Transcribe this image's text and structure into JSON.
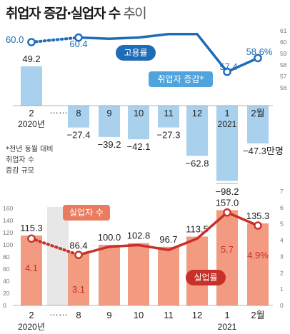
{
  "title": {
    "main": "취업자 증감·실업자 수",
    "sub": "추이"
  },
  "colors": {
    "employment_line": "#1f6bb7",
    "employed_bar": "#a9d1ee",
    "unemployed_bar": "#f29b80",
    "unemployment_line": "#c8302a",
    "unemployment_label": "#c8302a",
    "ellipsis_fill": "#e7e7e7"
  },
  "x_axis": {
    "categories": [
      "2",
      "",
      "8",
      "9",
      "10",
      "11",
      "12",
      "1",
      "2월"
    ],
    "gap_marker": "……",
    "year_labels": [
      {
        "text": "2020년",
        "at": "2"
      },
      {
        "text": "2021",
        "at": "1"
      }
    ]
  },
  "chart_data": [
    {
      "type": "bar",
      "title": "취업자 증감",
      "unit_label": "만명",
      "categories": [
        "2",
        "",
        "8",
        "9",
        "10",
        "11",
        "12",
        "1",
        "2"
      ],
      "series": [
        {
          "name": "취업자 증감*",
          "values": [
            49.2,
            null,
            -27.4,
            -39.2,
            -42.1,
            -27.3,
            -62.8,
            -98.2,
            -47.3
          ]
        }
      ],
      "value_labels": [
        "49.2",
        "",
        "-27.4",
        "-39.2",
        "-42.1",
        "-27.3",
        "-62.8",
        "-98.2",
        "-47.3"
      ],
      "last_label_unit": "만명",
      "note": [
        "*전년 동월 대비",
        "취업자 수",
        "증감 규모"
      ]
    },
    {
      "type": "line",
      "title": "고용률",
      "categories": [
        "2",
        "",
        "8",
        "9",
        "10",
        "11",
        "12",
        "1",
        "2"
      ],
      "series": [
        {
          "name": "고용률",
          "values": [
            60.0,
            null,
            60.4,
            60.3,
            60.4,
            60.7,
            60.7,
            57.4,
            58.6
          ]
        }
      ],
      "value_labels": [
        "60.0",
        "",
        "60.4",
        "",
        "",
        "",
        "",
        "57.4",
        "58.6%"
      ],
      "ylim": [
        56,
        61
      ],
      "yticks": [
        "56",
        "57",
        "58",
        "59",
        "60",
        "61"
      ]
    },
    {
      "type": "bar",
      "title": "실업자 수",
      "categories": [
        "2",
        "",
        "8",
        "9",
        "10",
        "11",
        "12",
        "1",
        "2"
      ],
      "series": [
        {
          "name": "실업자 수",
          "values": [
            115.3,
            null,
            86.4,
            100.0,
            102.8,
            96.7,
            113.5,
            157.0,
            135.3
          ]
        }
      ],
      "value_labels": [
        "115.3",
        "",
        "86.4",
        "100.0",
        "102.8",
        "96.7",
        "113.5",
        "157.0",
        "135.3"
      ],
      "ylim": [
        0,
        160
      ],
      "yticks": [
        "0",
        "20",
        "40",
        "60",
        "80",
        "100",
        "120",
        "140",
        "160"
      ]
    },
    {
      "type": "line",
      "title": "실업률",
      "categories": [
        "2",
        "",
        "8",
        "9",
        "10",
        "11",
        "12",
        "1",
        "2"
      ],
      "series": [
        {
          "name": "실업률",
          "values": [
            4.1,
            null,
            3.1,
            3.6,
            3.7,
            3.4,
            4.1,
            5.7,
            4.9
          ]
        }
      ],
      "value_labels": [
        "4.1",
        "",
        "3.1",
        "",
        "",
        "",
        "",
        "5.7",
        "4.9%"
      ],
      "ylim": [
        0,
        7
      ],
      "yticks": [
        "0",
        "1",
        "2",
        "3",
        "4",
        "5",
        "6",
        "7"
      ]
    }
  ]
}
